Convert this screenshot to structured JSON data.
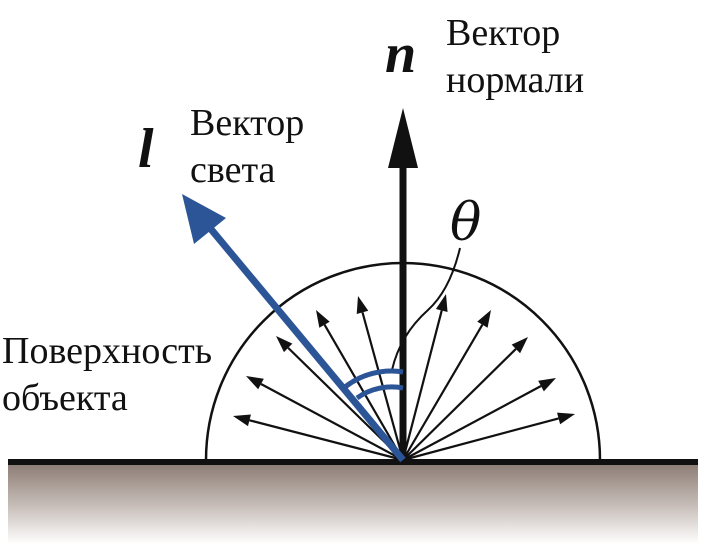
{
  "normal": {
    "symbol": "n",
    "label_line1": "Вектор",
    "label_line2": "нормали"
  },
  "light": {
    "symbol": "l",
    "label_line1": "Вектор",
    "label_line2": "света"
  },
  "angle": {
    "symbol": "θ"
  },
  "surface": {
    "label_line1": "Поверхность",
    "label_line2": "объекта"
  },
  "colors": {
    "light_vector": "#2b5596",
    "ink": "#111111",
    "surface_top": "#8a7a72",
    "surface_bottom": "#ffffff"
  }
}
